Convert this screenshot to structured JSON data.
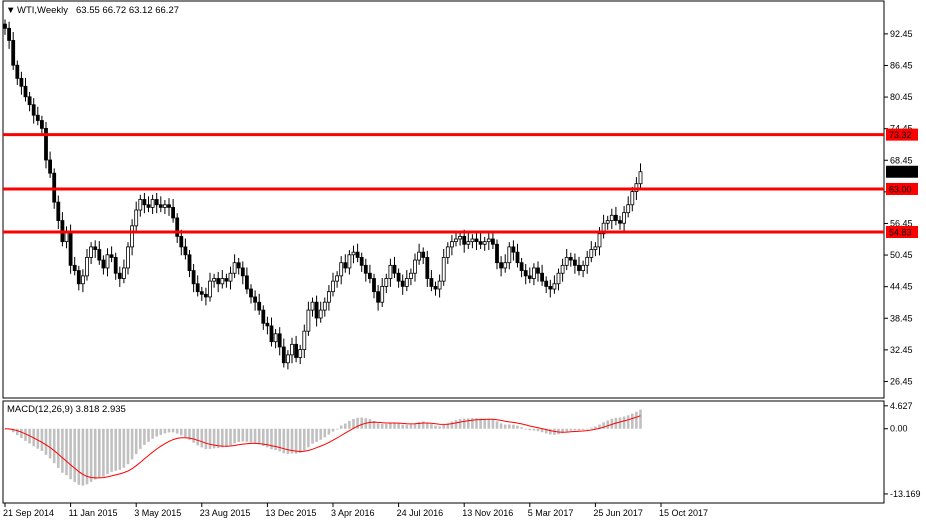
{
  "chart_data": [
    {
      "type": "candlestick",
      "header": {
        "arrow": "▼",
        "symbol": "WTI",
        "timeframe": "Weekly",
        "symbol_tf": "WTI,Weekly",
        "ohlc": "63.55 66.72 63.12 66.27"
      },
      "ylim": [
        23.5,
        98.5
      ],
      "y_ticks": [
        92.45,
        86.45,
        80.45,
        74.45,
        68.45,
        62.45,
        56.45,
        50.45,
        44.45,
        38.45,
        32.45,
        26.45
      ],
      "y_tick_labels": [
        "92.45",
        "86.45",
        "80.45",
        "74.45",
        "68.45",
        "62.45",
        "56.45",
        "50.45",
        "44.45",
        "38.45",
        "32.45",
        "26.45"
      ],
      "x_tick_labels": [
        "21 Sep 2014",
        "11 Jan 2015",
        "3 May 2015",
        "23 Aug 2015",
        "13 Dec 2015",
        "3 Apr 2016",
        "24 Jul 2016",
        "13 Nov 2016",
        "5 Mar 2017",
        "25 Jun 2017",
        "15 Oct 2017"
      ],
      "x_tick_weeks": [
        0,
        16,
        32,
        48,
        64,
        80,
        96,
        112,
        128,
        144,
        160
      ],
      "levels": [
        {
          "value": 73.32,
          "label": "73.32",
          "color": "#ff0000"
        },
        {
          "value": 63.0,
          "label": "63.00",
          "color": "#ff0000"
        },
        {
          "value": 54.83,
          "label": "54.83",
          "color": "#ff0000"
        }
      ],
      "current_price": {
        "value": 66.27,
        "label": "66.27"
      },
      "closes": [
        93.5,
        91.2,
        86.5,
        84.0,
        82.5,
        80.5,
        79.0,
        77.0,
        76.0,
        74.5,
        68.5,
        66.0,
        60.5,
        57.0,
        53.0,
        55.0,
        48.5,
        47.5,
        45.0,
        46.5,
        50.0,
        52.0,
        51.5,
        49.5,
        48.0,
        50.5,
        50.0,
        47.0,
        46.0,
        48.0,
        52.0,
        56.0,
        59.0,
        61.0,
        60.0,
        59.5,
        61.0,
        60.0,
        59.5,
        60.0,
        59.5,
        57.5,
        54.0,
        52.0,
        50.5,
        47.5,
        45.0,
        43.5,
        43.0,
        42.5,
        45.5,
        46.0,
        45.0,
        46.0,
        45.5,
        47.0,
        49.0,
        48.0,
        46.5,
        44.0,
        42.5,
        41.5,
        40.0,
        37.5,
        37.0,
        34.0,
        35.5,
        33.0,
        30.0,
        31.5,
        33.5,
        31.0,
        32.5,
        36.0,
        40.0,
        41.5,
        38.5,
        40.0,
        41.5,
        43.5,
        45.5,
        46.5,
        49.0,
        48.0,
        50.5,
        51.0,
        50.0,
        48.5,
        47.0,
        46.0,
        43.5,
        41.5,
        44.5,
        46.0,
        48.5,
        47.0,
        45.5,
        44.5,
        46.0,
        47.0,
        49.5,
        51.0,
        50.0,
        46.0,
        44.5,
        44.0,
        45.5,
        50.0,
        52.0,
        53.0,
        53.5,
        54.0,
        52.5,
        53.0,
        53.5,
        53.0,
        52.5,
        53.0,
        53.5,
        52.5,
        49.0,
        48.0,
        49.0,
        52.0,
        51.0,
        49.0,
        47.5,
        46.5,
        46.0,
        48.0,
        47.0,
        45.5,
        44.5,
        44.0,
        45.0,
        47.0,
        48.5,
        50.0,
        49.5,
        48.5,
        47.5,
        48.5,
        50.0,
        51.5,
        52.0,
        54.5,
        56.5,
        57.0,
        58.0,
        57.0,
        56.5,
        58.5,
        60.0,
        62.5,
        64.0,
        66.27
      ],
      "series": [
        {
          "label": "MACD(12,26,9) 3.818 2.935"
        }
      ],
      "macd": {
        "label": "MACD(12,26,9) 3.818 2.935",
        "ylim": [
          -14.8,
          5.4
        ],
        "y_tick_labels": [
          "4.627",
          "0.00",
          "-13.169"
        ],
        "y_ticks": [
          4.627,
          0.0,
          -13.169
        ],
        "signal_color": "#ff0000",
        "hist_color": "#c0c0c0"
      }
    }
  ]
}
